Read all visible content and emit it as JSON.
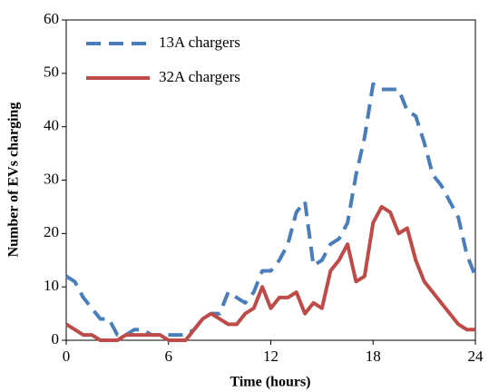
{
  "chart_data": {
    "type": "line",
    "xlabel": "Time (hours)",
    "ylabel": "Number of EVs charging",
    "x": [
      0,
      0.5,
      1,
      1.5,
      2,
      2.5,
      3,
      3.5,
      4,
      4.5,
      5,
      5.5,
      6,
      6.5,
      7,
      7.5,
      8,
      8.5,
      9,
      9.5,
      10,
      10.5,
      11,
      11.5,
      12,
      12.5,
      13,
      13.5,
      14,
      14.5,
      15,
      15.5,
      16,
      16.5,
      17,
      17.5,
      18,
      18.5,
      19,
      19.5,
      20,
      20.5,
      21,
      21.5,
      22,
      22.5,
      23,
      23.5,
      24
    ],
    "series": [
      {
        "name": "13A chargers",
        "color": "#4a7ebb",
        "dashed": true,
        "values": [
          12,
          11,
          8,
          6,
          4,
          4,
          1,
          1,
          2,
          2,
          1,
          1,
          1,
          1,
          1,
          2,
          4,
          5,
          5,
          9,
          8,
          7,
          9,
          13,
          13,
          15,
          18,
          24,
          26,
          14,
          15,
          18,
          19,
          22,
          31,
          38,
          48,
          47,
          47,
          47,
          43,
          42,
          37,
          31,
          29,
          26,
          23,
          16,
          12
        ]
      },
      {
        "name": "32A chargers",
        "color": "#be4b48",
        "dashed": false,
        "values": [
          3,
          2,
          1,
          1,
          0,
          0,
          0,
          1,
          1,
          1,
          1,
          1,
          0,
          0,
          0,
          2,
          4,
          5,
          4,
          3,
          3,
          5,
          6,
          10,
          6,
          8,
          8,
          9,
          5,
          7,
          6,
          13,
          15,
          18,
          11,
          12,
          22,
          25,
          24,
          20,
          21,
          15,
          11,
          9,
          7,
          5,
          3,
          2,
          2
        ]
      }
    ],
    "xlim": [
      0,
      24
    ],
    "xticks": [
      0,
      6,
      12,
      18,
      24
    ],
    "ylim": [
      0,
      60
    ],
    "yticks": [
      0,
      10,
      20,
      30,
      40,
      50,
      60
    ],
    "legend": "top-left"
  }
}
